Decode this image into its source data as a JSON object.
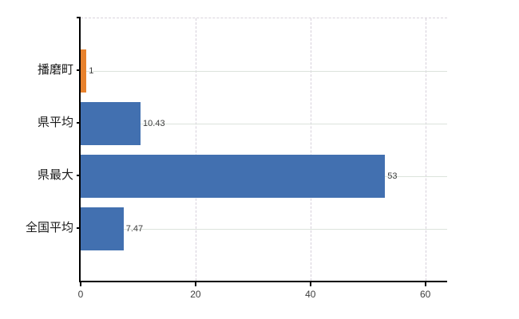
{
  "chart_data": {
    "type": "bar",
    "orientation": "horizontal",
    "title": "",
    "categories": [
      "播磨町",
      "県平均",
      "県最大",
      "全国平均"
    ],
    "values": [
      1,
      10.43,
      53,
      7.47
    ],
    "value_labels": [
      "1",
      "10.43",
      "53",
      "7.47"
    ],
    "bar_colors": [
      "#e8822d",
      "#4270b0",
      "#4270b0",
      "#4270b0"
    ],
    "xlim": [
      0,
      63.8
    ],
    "xticks": [
      0,
      20,
      40,
      60
    ],
    "xtick_labels": [
      "0",
      "20",
      "40",
      "60"
    ],
    "legend": null,
    "grid": {
      "vertical": "dashed lines at x ticks 20/40/60",
      "horizontal": "solid lines at category centers"
    }
  },
  "colors": {
    "background": "#ffffff",
    "bar_primary": "#4270b0",
    "bar_highlight": "#e8822d",
    "axis": "#000000",
    "grid_vertical": "#d6cfda",
    "grid_horizontal": "#dce3dc",
    "plot_border_top": "#d9d3dc",
    "category_label": "#1a1a1a",
    "value_label": "#3d3d3d",
    "tick_label": "#3d3d3d"
  }
}
